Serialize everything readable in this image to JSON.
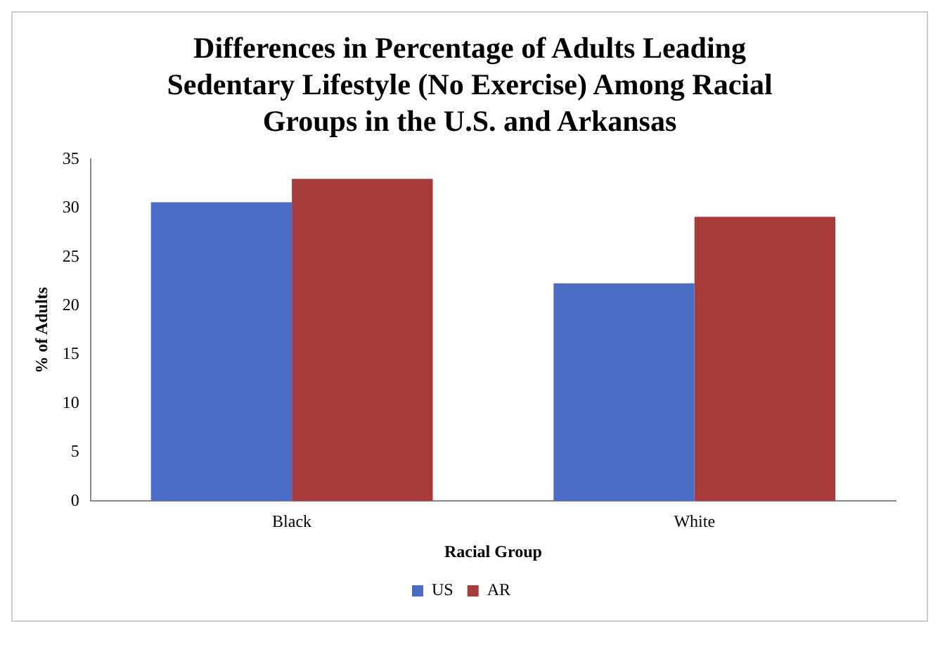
{
  "chart_data": {
    "type": "bar",
    "title": "Differences in Percentage of Adults Leading Sedentary Lifestyle (No Exercise) Among Racial Groups in the U.S. and Arkansas",
    "xlabel": "Racial Group",
    "ylabel": "% of Adults",
    "categories": [
      "Black",
      "White"
    ],
    "series": [
      {
        "name": "US",
        "color": "#4a6cc4",
        "values": [
          30.6,
          22.3
        ]
      },
      {
        "name": "AR",
        "color": "#a83c3a",
        "values": [
          33,
          29.1
        ]
      }
    ],
    "ylim": [
      0,
      35
    ],
    "yticks": [
      0,
      5,
      10,
      15,
      20,
      25,
      30,
      35
    ],
    "grid": false,
    "legend": "bottom"
  }
}
